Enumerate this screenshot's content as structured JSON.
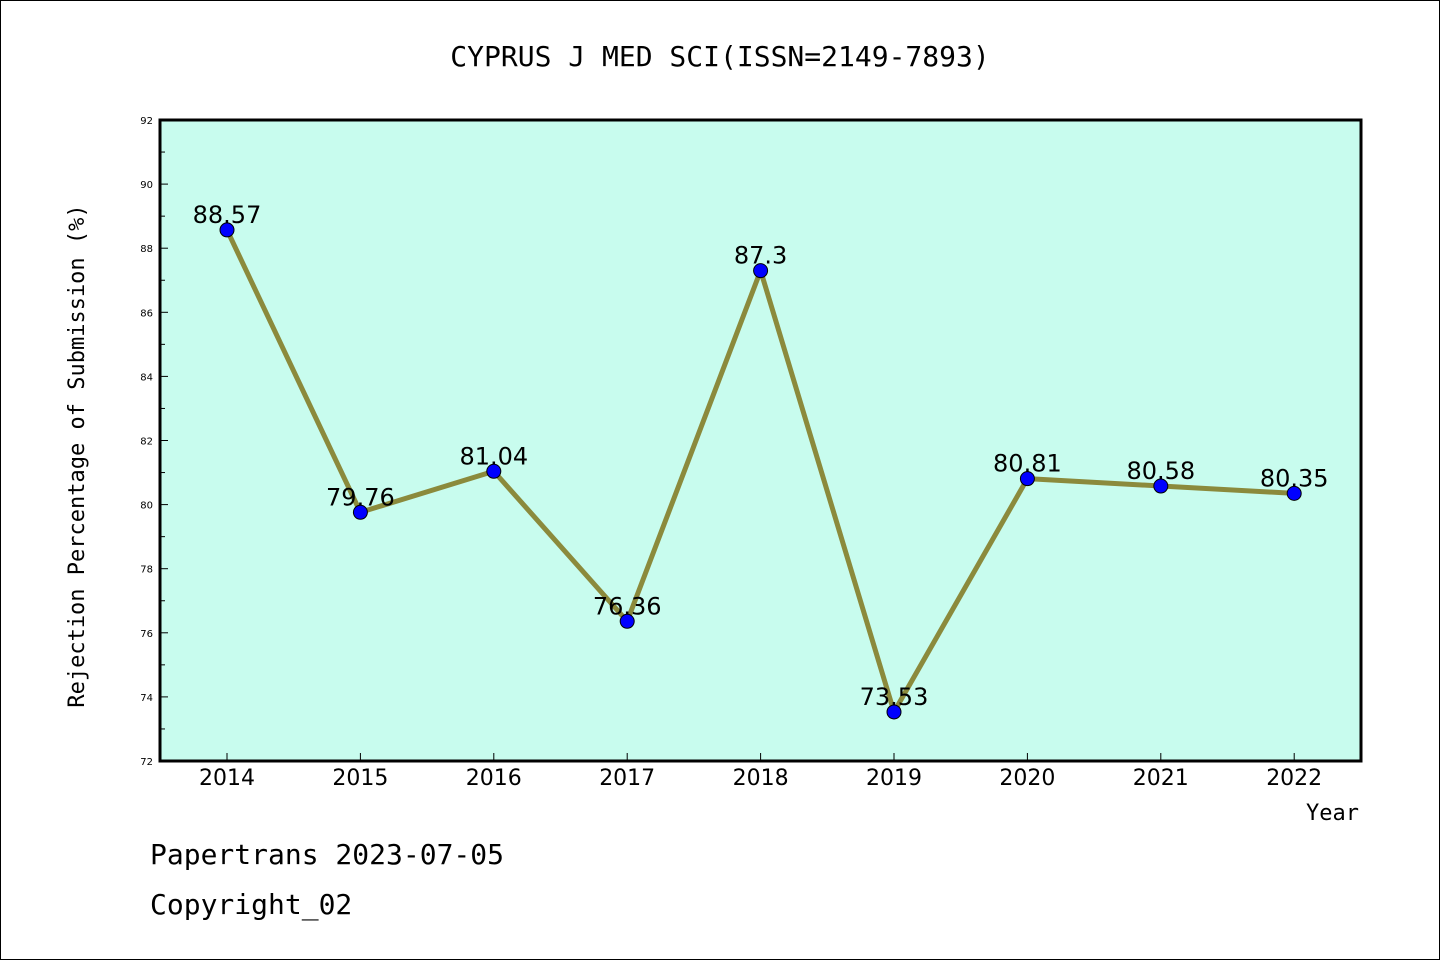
{
  "chart_data": {
    "type": "line",
    "title": "CYPRUS J MED SCI(ISSN=2149-7893)",
    "xlabel": "Year",
    "ylabel": "Rejection Percentage of Submission (%)",
    "categories": [
      "2014",
      "2015",
      "2016",
      "2017",
      "2018",
      "2019",
      "2020",
      "2021",
      "2022"
    ],
    "values": [
      88.57,
      79.76,
      81.04,
      76.36,
      87.3,
      73.53,
      80.81,
      80.58,
      80.35
    ],
    "data_labels": [
      "88.57",
      "79.76",
      "81.04",
      "76.36",
      "87.3",
      "73.53",
      "80.81",
      "80.58",
      "80.35"
    ],
    "ylim": [
      72,
      92
    ],
    "yticks": [
      72,
      74,
      76,
      78,
      80,
      82,
      84,
      86,
      88,
      90,
      92
    ],
    "grid": false,
    "colors": {
      "plot_background": "#c8fcee",
      "line": "#8b8a3c",
      "marker": "#0000ff"
    }
  },
  "footer": {
    "line1": "Papertrans 2023-07-05",
    "line2": "Copyright_02"
  }
}
